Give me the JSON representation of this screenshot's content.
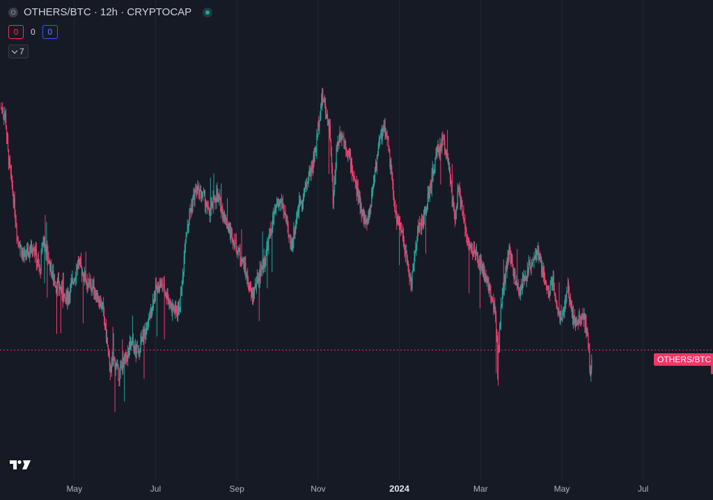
{
  "header": {
    "symbol_icon": "O",
    "title": "OTHERS/BTC · 12h · CRYPTOCAP",
    "status_icon": "live-dot-icon"
  },
  "counters": {
    "sell": "0",
    "mid": "0",
    "buy": "0"
  },
  "indicators": {
    "count": "7"
  },
  "price_label": "OTHERS/BTC",
  "colors": {
    "background": "#161a25",
    "up": "#26a69a",
    "down": "#ef3d6b",
    "grid": "#232733",
    "price_line": "#f23669"
  },
  "chart_data": {
    "type": "candlestick",
    "title": "OTHERS/BTC · 12h · CRYPTOCAP",
    "xlabel": "",
    "ylabel": "",
    "x_ticks": [
      {
        "label": "May",
        "t": 4.25,
        "bold": false
      },
      {
        "label": "Jul",
        "t": 6.25,
        "bold": false
      },
      {
        "label": "Sep",
        "t": 8.25,
        "bold": false
      },
      {
        "label": "Nov",
        "t": 10.25,
        "bold": false
      },
      {
        "label": "2024",
        "t": 12.25,
        "bold": true
      },
      {
        "label": "Mar",
        "t": 14.25,
        "bold": false
      },
      {
        "label": "May",
        "t": 16.25,
        "bold": false
      },
      {
        "label": "Jul",
        "t": 18.25,
        "bold": false
      }
    ],
    "x_range": [
      2.42,
      19.97
    ],
    "y_range": [
      0,
      100
    ],
    "current_value": 23.3,
    "grid": true,
    "series_path": [
      [
        2.45,
        85
      ],
      [
        2.55,
        83
      ],
      [
        2.62,
        73
      ],
      [
        2.75,
        62
      ],
      [
        2.85,
        52
      ],
      [
        3.0,
        47
      ],
      [
        3.12,
        48
      ],
      [
        3.25,
        50
      ],
      [
        3.4,
        43
      ],
      [
        3.48,
        52
      ],
      [
        3.62,
        46
      ],
      [
        3.75,
        41
      ],
      [
        3.9,
        39
      ],
      [
        4.0,
        36
      ],
      [
        4.12,
        38
      ],
      [
        4.25,
        42
      ],
      [
        4.35,
        46
      ],
      [
        4.45,
        43
      ],
      [
        4.6,
        40
      ],
      [
        4.72,
        39
      ],
      [
        4.85,
        36
      ],
      [
        4.95,
        34
      ],
      [
        5.05,
        26
      ],
      [
        5.12,
        18
      ],
      [
        5.22,
        21
      ],
      [
        5.35,
        17
      ],
      [
        5.45,
        20
      ],
      [
        5.55,
        22
      ],
      [
        5.65,
        25
      ],
      [
        5.75,
        23
      ],
      [
        5.85,
        24
      ],
      [
        6.0,
        28
      ],
      [
        6.1,
        31
      ],
      [
        6.22,
        38
      ],
      [
        6.35,
        40
      ],
      [
        6.45,
        39
      ],
      [
        6.55,
        37
      ],
      [
        6.65,
        34
      ],
      [
        6.78,
        33
      ],
      [
        6.85,
        35
      ],
      [
        6.92,
        42
      ],
      [
        6.98,
        52
      ],
      [
        7.05,
        56
      ],
      [
        7.15,
        61
      ],
      [
        7.25,
        64
      ],
      [
        7.35,
        63
      ],
      [
        7.45,
        62
      ],
      [
        7.55,
        58
      ],
      [
        7.65,
        60
      ],
      [
        7.75,
        63
      ],
      [
        7.85,
        60
      ],
      [
        7.95,
        57
      ],
      [
        8.05,
        54
      ],
      [
        8.15,
        52
      ],
      [
        8.25,
        49
      ],
      [
        8.35,
        47
      ],
      [
        8.45,
        44
      ],
      [
        8.55,
        39
      ],
      [
        8.62,
        37
      ],
      [
        8.72,
        40
      ],
      [
        8.85,
        44
      ],
      [
        8.95,
        47
      ],
      [
        9.05,
        52
      ],
      [
        9.15,
        57
      ],
      [
        9.25,
        60
      ],
      [
        9.35,
        61
      ],
      [
        9.45,
        57
      ],
      [
        9.52,
        52
      ],
      [
        9.6,
        50
      ],
      [
        9.7,
        56
      ],
      [
        9.8,
        61
      ],
      [
        9.9,
        63
      ],
      [
        10.0,
        67
      ],
      [
        10.1,
        70
      ],
      [
        10.2,
        75
      ],
      [
        10.28,
        83
      ],
      [
        10.35,
        88
      ],
      [
        10.45,
        84
      ],
      [
        10.55,
        78
      ],
      [
        10.62,
        60
      ],
      [
        10.7,
        74
      ],
      [
        10.8,
        79
      ],
      [
        10.92,
        76
      ],
      [
        11.05,
        71
      ],
      [
        11.15,
        66
      ],
      [
        11.25,
        62
      ],
      [
        11.35,
        58
      ],
      [
        11.45,
        55
      ],
      [
        11.55,
        61
      ],
      [
        11.65,
        69
      ],
      [
        11.75,
        76
      ],
      [
        11.85,
        80
      ],
      [
        11.95,
        78
      ],
      [
        12.05,
        68
      ],
      [
        12.15,
        58
      ],
      [
        12.25,
        55
      ],
      [
        12.35,
        51
      ],
      [
        12.45,
        45
      ],
      [
        12.55,
        40
      ],
      [
        12.62,
        47
      ],
      [
        12.7,
        54
      ],
      [
        12.8,
        55
      ],
      [
        12.9,
        59
      ],
      [
        13.0,
        64
      ],
      [
        13.1,
        70
      ],
      [
        13.2,
        74
      ],
      [
        13.32,
        77
      ],
      [
        13.45,
        72
      ],
      [
        13.55,
        61
      ],
      [
        13.62,
        56
      ],
      [
        13.7,
        64
      ],
      [
        13.8,
        60
      ],
      [
        13.9,
        52
      ],
      [
        14.0,
        49
      ],
      [
        14.1,
        48
      ],
      [
        14.2,
        46
      ],
      [
        14.3,
        44
      ],
      [
        14.4,
        40
      ],
      [
        14.5,
        38
      ],
      [
        14.6,
        33
      ],
      [
        14.7,
        24
      ],
      [
        14.75,
        35
      ],
      [
        14.85,
        42
      ],
      [
        14.95,
        48
      ],
      [
        15.05,
        44
      ],
      [
        15.12,
        40
      ],
      [
        15.2,
        38
      ],
      [
        15.3,
        41
      ],
      [
        15.42,
        44
      ],
      [
        15.55,
        47
      ],
      [
        15.65,
        48
      ],
      [
        15.75,
        44
      ],
      [
        15.85,
        40
      ],
      [
        15.95,
        38
      ],
      [
        16.02,
        42
      ],
      [
        16.1,
        36
      ],
      [
        16.2,
        31
      ],
      [
        16.3,
        34
      ],
      [
        16.4,
        39
      ],
      [
        16.5,
        33
      ],
      [
        16.6,
        30
      ],
      [
        16.7,
        31
      ],
      [
        16.8,
        31
      ],
      [
        16.88,
        27
      ],
      [
        16.95,
        18
      ],
      [
        17.0,
        23
      ]
    ]
  }
}
